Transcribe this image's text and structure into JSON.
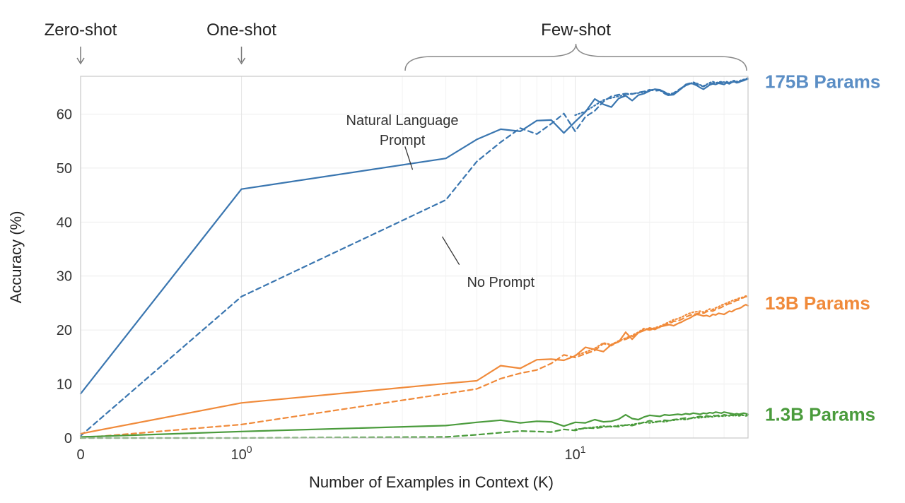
{
  "chart_data": {
    "type": "line",
    "xlabel": "Number of Examples in Context  (K)",
    "ylabel": "Accuracy (%)",
    "x_scale": "symlog",
    "xlim": [
      0,
      50
    ],
    "ylim": [
      0,
      67
    ],
    "grid": true,
    "x_ticks": [
      {
        "value": 0,
        "base": "0",
        "exp": ""
      },
      {
        "value": 1,
        "base": "10",
        "exp": "0"
      },
      {
        "value": 10,
        "base": "10",
        "exp": "1"
      }
    ],
    "y_ticks": [
      0,
      10,
      20,
      30,
      40,
      50,
      60
    ],
    "regimes": [
      {
        "label": "Zero-shot",
        "type": "arrow",
        "x": 0
      },
      {
        "label": "One-shot",
        "type": "arrow",
        "x": 1
      },
      {
        "label": "Few-shot",
        "type": "brace",
        "x_range": [
          2,
          50
        ]
      }
    ],
    "annotations": [
      {
        "lines": [
          "Natural Language",
          "Prompt"
        ],
        "x": 2,
        "y": 58,
        "pointer": [
          [
            2.05,
            54.0
          ],
          [
            2.2,
            49.7
          ]
        ]
      },
      {
        "lines": [
          "No Prompt"
        ],
        "x": 5,
        "y": 28,
        "pointer": [
          [
            2.9,
            37.3
          ],
          [
            3.4,
            32.1
          ]
        ]
      }
    ],
    "series_labels": [
      {
        "text": "175B Params",
        "color": "#5b8ec5",
        "y": 66
      },
      {
        "text": "13B Params",
        "color": "#f08a3a",
        "y": 25
      },
      {
        "text": "1.3B Params",
        "color": "#4a9b3c",
        "y": 4.4
      }
    ],
    "series": [
      {
        "color": "#3a76b0",
        "dash": "solid",
        "x": [
          0,
          1,
          3,
          4,
          5,
          6,
          7,
          8,
          9,
          10,
          11,
          12,
          13,
          14,
          15,
          16,
          17,
          18,
          19,
          20,
          21,
          22,
          23,
          24,
          25,
          26,
          27,
          28,
          29,
          30,
          31,
          32,
          33,
          34,
          35,
          36,
          37,
          38,
          39,
          40,
          41,
          42,
          43,
          44,
          45,
          46,
          47,
          48,
          49,
          50
        ],
        "values": [
          8.2,
          46.1,
          51.8,
          55.3,
          57.2,
          56.8,
          58.8,
          58.9,
          56.5,
          58.6,
          60.4,
          62.8,
          61.8,
          61.3,
          62.9,
          63.4,
          62.5,
          63.5,
          63.8,
          64.3,
          64.6,
          64.5,
          64.1,
          63.5,
          63.6,
          64.2,
          64.8,
          65.5,
          65.7,
          65.6,
          65.3,
          64.9,
          64.6,
          65.0,
          65.4,
          65.6,
          65.5,
          65.7,
          65.6,
          65.5,
          65.8,
          65.6,
          65.9,
          66.0,
          65.8,
          65.9,
          66.1,
          66.2,
          66.4,
          66.5
        ]
      },
      {
        "color": "#3a76b0",
        "dash": "dashed",
        "x": [
          0,
          1,
          3,
          4,
          5,
          6,
          7,
          8,
          9,
          10,
          11,
          12,
          13,
          14,
          15,
          16,
          17,
          18,
          19,
          20,
          21,
          22,
          23,
          24,
          25,
          26,
          27,
          28,
          29,
          30,
          31,
          32,
          33,
          34,
          35,
          36,
          37,
          38,
          39,
          40,
          41,
          42,
          43,
          44,
          45,
          46,
          47,
          48,
          49,
          50
        ],
        "values": [
          0.4,
          26.2,
          44.1,
          51.2,
          54.8,
          57.4,
          56.3,
          58.2,
          60.1,
          56.8,
          59.5,
          60.6,
          62.3,
          63.3,
          63.6,
          63.8,
          63.7,
          64.0,
          64.2,
          64.5,
          64.3,
          64.4,
          63.8,
          63.4,
          63.9,
          64.4,
          64.9,
          65.3,
          65.6,
          65.8,
          65.5,
          65.3,
          65.1,
          65.4,
          65.5,
          65.7,
          65.6,
          65.8,
          65.9,
          65.8,
          65.9,
          65.7,
          66.0,
          66.1,
          65.9,
          66.0,
          66.2,
          66.3,
          66.4,
          66.6
        ]
      },
      {
        "color": "#3a76b0",
        "dash": "dotted",
        "x": [
          10,
          11,
          12,
          13,
          14,
          15,
          16,
          17,
          18,
          19,
          20,
          21,
          22,
          23,
          24,
          25,
          26,
          27,
          28,
          29,
          30,
          31,
          32,
          33,
          34,
          35,
          36,
          37,
          38,
          39,
          40,
          41,
          42,
          43,
          44,
          45,
          46,
          47,
          48,
          49,
          50
        ],
        "values": [
          59.8,
          60.5,
          61.6,
          62.6,
          63.0,
          63.3,
          63.6,
          63.8,
          63.9,
          64.1,
          64.4,
          64.6,
          64.4,
          64.0,
          63.7,
          63.9,
          64.3,
          64.8,
          65.3,
          65.6,
          65.9,
          65.7,
          65.4,
          65.2,
          65.5,
          65.8,
          66.0,
          65.8,
          65.9,
          66.0,
          65.9,
          66.0,
          65.8,
          66.1,
          66.2,
          66.0,
          66.1,
          66.3,
          66.4,
          66.5,
          66.7
        ]
      },
      {
        "color": "#f08a3a",
        "dash": "solid",
        "x": [
          0,
          1,
          3,
          4,
          5,
          6,
          7,
          8,
          9,
          10,
          11,
          12,
          13,
          14,
          15,
          16,
          17,
          18,
          19,
          20,
          21,
          22,
          23,
          24,
          25,
          26,
          27,
          28,
          29,
          30,
          31,
          32,
          33,
          34,
          35,
          36,
          37,
          38,
          39,
          40,
          41,
          42,
          43,
          44,
          45,
          46,
          47,
          48,
          49,
          50
        ],
        "values": [
          0.8,
          6.5,
          10.1,
          10.6,
          13.4,
          12.9,
          14.5,
          14.6,
          14.4,
          15.2,
          16.8,
          16.4,
          16.0,
          17.3,
          17.8,
          19.6,
          18.3,
          19.5,
          19.9,
          20.4,
          20.1,
          20.6,
          20.8,
          21.0,
          20.8,
          21.2,
          21.5,
          21.9,
          22.2,
          22.6,
          22.9,
          22.8,
          22.6,
          22.7,
          22.5,
          22.9,
          22.8,
          23.1,
          23.0,
          22.9,
          23.2,
          23.5,
          23.4,
          23.7,
          23.9,
          24.0,
          24.2,
          24.5,
          24.7,
          24.5
        ]
      },
      {
        "color": "#f08a3a",
        "dash": "dashed",
        "x": [
          0,
          1,
          3,
          4,
          5,
          6,
          7,
          8,
          9,
          10,
          11,
          12,
          13,
          14,
          15,
          16,
          17,
          18,
          19,
          20,
          21,
          22,
          23,
          24,
          25,
          26,
          27,
          28,
          29,
          30,
          31,
          32,
          33,
          34,
          35,
          36,
          37,
          38,
          39,
          40,
          41,
          42,
          43,
          44,
          45,
          46,
          47,
          48,
          49,
          50
        ],
        "values": [
          0.0,
          2.5,
          8.2,
          9.1,
          11.0,
          12.0,
          12.6,
          13.8,
          15.4,
          14.9,
          15.6,
          16.2,
          17.5,
          17.1,
          17.9,
          18.3,
          18.8,
          19.4,
          20.2,
          20.0,
          20.3,
          20.5,
          20.9,
          21.2,
          21.6,
          21.7,
          22.0,
          22.4,
          22.7,
          22.9,
          23.0,
          23.2,
          23.1,
          23.4,
          23.6,
          23.5,
          23.8,
          24.0,
          24.2,
          24.5,
          24.7,
          24.9,
          25.0,
          25.3,
          25.5,
          25.6,
          25.9,
          26.0,
          26.2,
          26.1
        ]
      },
      {
        "color": "#f08a3a",
        "dash": "dotted",
        "x": [
          10,
          11,
          12,
          13,
          14,
          15,
          16,
          17,
          18,
          19,
          20,
          21,
          22,
          23,
          24,
          25,
          26,
          27,
          28,
          29,
          30,
          31,
          32,
          33,
          34,
          35,
          36,
          37,
          38,
          39,
          40,
          41,
          42,
          43,
          44,
          45,
          46,
          47,
          48,
          49,
          50
        ],
        "values": [
          15.3,
          15.9,
          16.6,
          17.6,
          17.3,
          18.0,
          18.5,
          19.0,
          19.6,
          20.3,
          20.1,
          20.4,
          20.7,
          21.1,
          21.5,
          21.9,
          22.1,
          22.4,
          22.8,
          23.1,
          23.3,
          23.4,
          23.5,
          23.3,
          23.6,
          23.9,
          23.8,
          24.1,
          24.3,
          24.6,
          24.8,
          25.0,
          25.2,
          25.4,
          25.6,
          25.7,
          25.9,
          26.0,
          26.1,
          26.3,
          26.2
        ]
      },
      {
        "color": "#4a9b3c",
        "dash": "solid",
        "x": [
          0,
          1,
          3,
          4,
          5,
          6,
          7,
          8,
          9,
          10,
          11,
          12,
          13,
          14,
          15,
          16,
          17,
          18,
          19,
          20,
          21,
          22,
          23,
          24,
          25,
          26,
          27,
          28,
          29,
          30,
          31,
          32,
          33,
          34,
          35,
          36,
          37,
          38,
          39,
          40,
          41,
          42,
          43,
          44,
          45,
          46,
          47,
          48,
          49,
          50
        ],
        "values": [
          0.2,
          1.2,
          2.3,
          2.9,
          3.3,
          2.8,
          3.1,
          3.0,
          2.2,
          2.9,
          2.8,
          3.4,
          3.0,
          3.1,
          3.5,
          4.3,
          3.6,
          3.4,
          3.9,
          4.2,
          4.1,
          4.0,
          4.3,
          4.2,
          4.3,
          4.4,
          4.3,
          4.5,
          4.4,
          4.6,
          4.5,
          4.4,
          4.6,
          4.5,
          4.7,
          4.6,
          4.8,
          4.7,
          4.6,
          4.8,
          4.7,
          4.6,
          4.5,
          4.4,
          4.5,
          4.4,
          4.5,
          4.6,
          4.5,
          4.4
        ]
      },
      {
        "color": "#4a9b3c",
        "dash": "dashed",
        "x": [
          0,
          1,
          3,
          4,
          5,
          6,
          7,
          8,
          9,
          10,
          11,
          12,
          13,
          14,
          15,
          16,
          17,
          18,
          19,
          20,
          21,
          22,
          23,
          24,
          25,
          26,
          27,
          28,
          29,
          30,
          31,
          32,
          33,
          34,
          35,
          36,
          37,
          38,
          39,
          40,
          41,
          42,
          43,
          44,
          45,
          46,
          47,
          48,
          49,
          50
        ],
        "values": [
          0.0,
          0.0,
          0.2,
          0.6,
          1.0,
          1.3,
          1.2,
          1.1,
          1.6,
          1.4,
          1.9,
          1.8,
          2.0,
          2.2,
          2.1,
          2.4,
          2.3,
          2.6,
          2.9,
          3.2,
          3.0,
          3.1,
          3.3,
          3.2,
          3.4,
          3.5,
          3.6,
          3.7,
          3.6,
          3.8,
          3.9,
          4.0,
          3.9,
          4.1,
          4.0,
          4.2,
          4.1,
          4.2,
          4.1,
          4.3,
          4.2,
          4.3,
          4.2,
          4.3,
          4.2,
          4.3,
          4.3,
          4.2,
          4.3,
          4.3
        ]
      },
      {
        "color": "#4a9b3c",
        "dash": "dotted",
        "x": [
          10,
          11,
          12,
          13,
          14,
          15,
          16,
          17,
          18,
          19,
          20,
          21,
          22,
          23,
          24,
          25,
          26,
          27,
          28,
          29,
          30,
          31,
          32,
          33,
          34,
          35,
          36,
          37,
          38,
          39,
          40,
          41,
          42,
          43,
          44,
          45,
          46,
          47,
          48,
          49,
          50
        ],
        "values": [
          1.6,
          1.8,
          2.0,
          2.2,
          2.1,
          2.3,
          2.4,
          2.5,
          2.7,
          2.9,
          2.8,
          2.9,
          3.1,
          3.0,
          3.2,
          3.3,
          3.4,
          3.5,
          3.4,
          3.6,
          3.7,
          3.8,
          3.7,
          3.9,
          3.8,
          4.0,
          3.9,
          4.1,
          4.0,
          4.1,
          4.0,
          4.2,
          4.1,
          4.2,
          4.1,
          4.2,
          4.1,
          4.2,
          4.2,
          4.1,
          4.2
        ]
      }
    ]
  }
}
